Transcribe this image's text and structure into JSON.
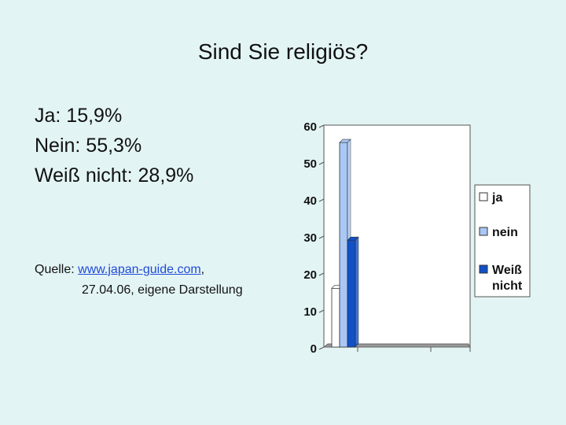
{
  "title": "Sind Sie religiös?",
  "stats": [
    {
      "label": "Ja: 15,9%"
    },
    {
      "label": "Nein: 55,3%"
    },
    {
      "label": "Weiß nicht: 28,9%"
    }
  ],
  "source": {
    "prefix": "Quelle: ",
    "link_text": "www.japan-guide.com",
    "suffix": ",",
    "line2": "27.04.06, eigene Darstellung"
  },
  "chart_data": {
    "type": "bar",
    "title": "",
    "xlabel": "",
    "ylabel": "",
    "ylim": [
      0,
      60
    ],
    "yticks": [
      0,
      10,
      20,
      30,
      40,
      50,
      60
    ],
    "grid": false,
    "legend_position": "right",
    "series": [
      {
        "name": "ja",
        "value": 15.9,
        "color": "#ffffff"
      },
      {
        "name": "nein",
        "value": 55.3,
        "color": "#a9c8f5"
      },
      {
        "name": "Weiß nicht",
        "value": 28.9,
        "color": "#1050c8"
      }
    ]
  }
}
